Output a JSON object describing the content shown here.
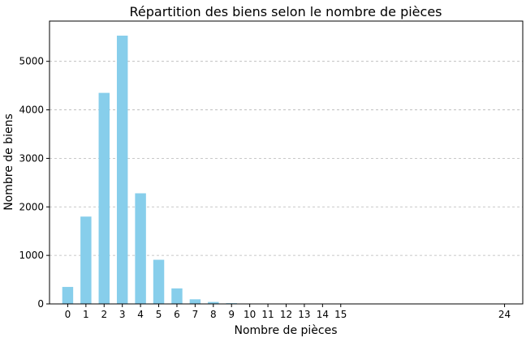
{
  "chart_data": {
    "type": "bar",
    "title": "Répartition des biens selon le nombre de pièces",
    "xlabel": "Nombre de pièces",
    "ylabel": "Nombre de biens",
    "categories": [
      "0",
      "1",
      "2",
      "3",
      "4",
      "5",
      "6",
      "7",
      "8",
      "9",
      "10",
      "11",
      "12",
      "13",
      "14",
      "15",
      "24"
    ],
    "x": [
      0,
      1,
      2,
      3,
      4,
      5,
      6,
      7,
      8,
      9,
      10,
      11,
      12,
      13,
      14,
      15,
      24
    ],
    "values": [
      350,
      1800,
      4350,
      5530,
      2280,
      910,
      320,
      95,
      40,
      15,
      8,
      5,
      3,
      2,
      1,
      1,
      1
    ],
    "xlim": [
      -1,
      25
    ],
    "ylim": [
      0,
      5830
    ],
    "yticks": [
      0,
      1000,
      2000,
      3000,
      4000,
      5000
    ],
    "grid": "y, dashed",
    "legend": "none",
    "bar_color": "#87ceeb"
  }
}
